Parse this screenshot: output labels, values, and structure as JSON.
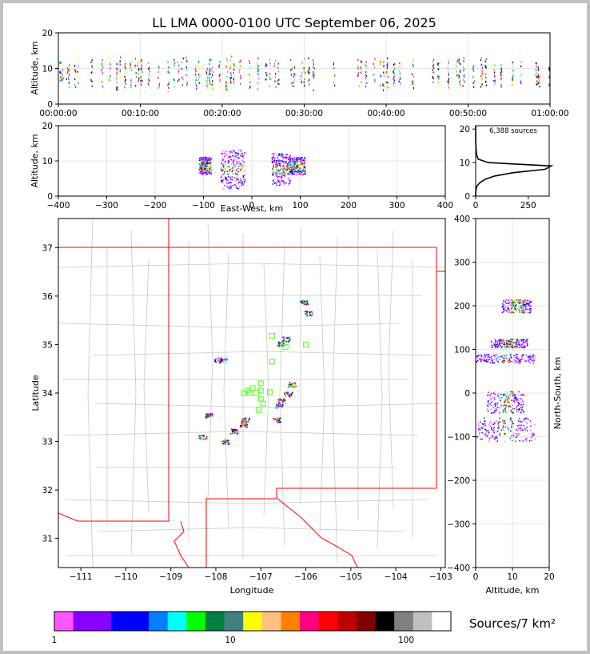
{
  "title": "LL LMA 0000-0100 UTC September 06, 2025",
  "chart_data": [
    {
      "panel": "altitude-time",
      "type": "scatter",
      "ylabel": "Altitude, km",
      "xlim": [
        "00:00:00",
        "01:00:00"
      ],
      "ylim": [
        0,
        20
      ],
      "xticks": [
        "00:00:00",
        "00:10:00",
        "00:20:00",
        "00:30:00",
        "00:40:00",
        "00:50:00",
        "01:00:00"
      ],
      "yticks": [
        "0",
        "10",
        "20"
      ],
      "grid": true,
      "burst_minutes": [
        0.2,
        0.5,
        1.0,
        1.2,
        2.0,
        2.4,
        4.0,
        5.3,
        6.2,
        7.1,
        7.5,
        8.1,
        8.8,
        9.4,
        9.7,
        10.1,
        11.0,
        12.2,
        13.4,
        14.1,
        14.6,
        15.1,
        15.6,
        16.7,
        17.1,
        18.1,
        18.4,
        18.7,
        19.6,
        20.5,
        21.0,
        21.4,
        22.1,
        23.3,
        24.3,
        25.3,
        25.8,
        26.4,
        26.8,
        28.4,
        28.7,
        29.6,
        30.0,
        30.5,
        31.1,
        33.6,
        36.6,
        36.9,
        37.5,
        38.5,
        39.3,
        39.6,
        40.1,
        40.9,
        41.6,
        43.2,
        45.7,
        46.3,
        47.5,
        48.6,
        48.9,
        49.4,
        50.6,
        51.6,
        52.1,
        53.2,
        54.0,
        55.4,
        56.4,
        58.3,
        58.6,
        59.9
      ],
      "typical_altitude_km": [
        5,
        12
      ]
    },
    {
      "panel": "altitude-eastwest",
      "type": "heatmap",
      "xlabel": "East-West, km",
      "ylabel": "Altitude, km",
      "xlim": [
        -400,
        400
      ],
      "ylim": [
        0,
        20
      ],
      "xticks": [
        "−400",
        "−300",
        "−200",
        "−100",
        "0",
        "100",
        "200",
        "300",
        "400"
      ],
      "yticks": [
        "0",
        "10",
        "20"
      ],
      "clusters": [
        {
          "x_range": [
            -110,
            -85
          ],
          "alt_range": [
            6,
            11
          ]
        },
        {
          "x_range": [
            -65,
            -15
          ],
          "alt_range": [
            2,
            13
          ]
        },
        {
          "x_range": [
            40,
            80
          ],
          "alt_range": [
            3,
            12
          ]
        },
        {
          "x_range": [
            75,
            110
          ],
          "alt_range": [
            6,
            11
          ]
        }
      ]
    },
    {
      "panel": "altitude-histogram",
      "type": "line",
      "annotation": "6,388 sources",
      "xlim": [
        0,
        350
      ],
      "ylim": [
        0,
        21
      ],
      "xticks": [
        "0",
        "250"
      ],
      "yticks": [
        "0",
        "10",
        "20"
      ],
      "profile_altitudes": [
        0,
        1,
        2,
        3,
        4,
        5,
        6,
        7,
        8,
        9,
        10,
        11,
        12,
        13,
        14,
        15,
        16,
        17,
        18,
        19,
        20,
        21
      ],
      "profile_counts": [
        0,
        0,
        2,
        6,
        20,
        45,
        90,
        180,
        330,
        360,
        60,
        12,
        6,
        3,
        2,
        1,
        0,
        0,
        0,
        0,
        0,
        0
      ]
    },
    {
      "panel": "plan-view-map",
      "type": "heatmap",
      "xlabel": "Longitude",
      "ylabel": "Latitude",
      "xlim": [
        -111.5,
        -102.9
      ],
      "ylim": [
        30.4,
        37.6
      ],
      "xticks": [
        "−111",
        "−110",
        "−109",
        "−108",
        "−107",
        "−106",
        "−105",
        "−104",
        "−103"
      ],
      "yticks": [
        "31",
        "32",
        "33",
        "34",
        "35",
        "36",
        "37"
      ],
      "source_clusters": [
        {
          "lon": -106.05,
          "lat": 35.88
        },
        {
          "lon": -105.95,
          "lat": 35.65
        },
        {
          "lon": -106.45,
          "lat": 35.12
        },
        {
          "lon": -106.55,
          "lat": 35.02
        },
        {
          "lon": -107.95,
          "lat": 34.7
        },
        {
          "lon": -107.85,
          "lat": 34.68
        },
        {
          "lon": -106.32,
          "lat": 34.18
        },
        {
          "lon": -106.55,
          "lat": 33.85
        },
        {
          "lon": -106.6,
          "lat": 33.75
        },
        {
          "lon": -106.4,
          "lat": 33.98
        },
        {
          "lon": -106.65,
          "lat": 33.45
        },
        {
          "lon": -108.15,
          "lat": 33.55
        },
        {
          "lon": -107.35,
          "lat": 33.45
        },
        {
          "lon": -107.4,
          "lat": 33.35
        },
        {
          "lon": -107.6,
          "lat": 33.22
        },
        {
          "lon": -108.3,
          "lat": 33.1
        },
        {
          "lon": -107.8,
          "lat": 33.0
        }
      ],
      "stations": [
        {
          "lon": -106.75,
          "lat": 35.18
        },
        {
          "lon": -106.45,
          "lat": 34.95
        },
        {
          "lon": -106.0,
          "lat": 35.0
        },
        {
          "lon": -106.75,
          "lat": 34.65
        },
        {
          "lon": -107.0,
          "lat": 34.2
        },
        {
          "lon": -107.0,
          "lat": 34.05
        },
        {
          "lon": -107.18,
          "lat": 34.1
        },
        {
          "lon": -107.3,
          "lat": 34.05
        },
        {
          "lon": -107.38,
          "lat": 34.0
        },
        {
          "lon": -107.25,
          "lat": 34.0
        },
        {
          "lon": -107.1,
          "lat": 34.0
        },
        {
          "lon": -106.8,
          "lat": 34.02
        },
        {
          "lon": -107.0,
          "lat": 33.88
        },
        {
          "lon": -106.95,
          "lat": 33.78
        },
        {
          "lon": -107.05,
          "lat": 33.65
        }
      ]
    },
    {
      "panel": "northsouth-altitude",
      "type": "heatmap",
      "xlabel": "Altitude, km",
      "ylabel": "North-South, km",
      "xlim": [
        0,
        20
      ],
      "ylim": [
        -400,
        400
      ],
      "xticks": [
        "0",
        "10",
        "20"
      ],
      "yticks": [
        "−400",
        "−300",
        "−200",
        "−100",
        "0",
        "100",
        "200",
        "300",
        "400"
      ],
      "clusters": [
        {
          "y_range": [
            185,
            215
          ],
          "alt_range": [
            7,
            15
          ]
        },
        {
          "y_range": [
            105,
            125
          ],
          "alt_range": [
            4,
            14
          ]
        },
        {
          "y_range": [
            70,
            90
          ],
          "alt_range": [
            0,
            16
          ]
        },
        {
          "y_range": [
            -45,
            5
          ],
          "alt_range": [
            3,
            13
          ]
        },
        {
          "y_range": [
            -110,
            -55
          ],
          "alt_range": [
            0,
            16
          ]
        }
      ]
    }
  ],
  "colorbar": {
    "label": "Sources/7 km²",
    "tick_labels": [
      "1",
      "10",
      "100"
    ],
    "colors": [
      "#ff55ff",
      "#8800ff",
      "#8800ff",
      "#0000ff",
      "#0000ff",
      "#0080ff",
      "#00ffff",
      "#00ff00",
      "#008040",
      "#408080",
      "#ffff00",
      "#ffc080",
      "#ff8000",
      "#ff0080",
      "#ff0000",
      "#c00000",
      "#800000",
      "#000000",
      "#808080",
      "#c0c0c0",
      "#ffffff"
    ]
  }
}
